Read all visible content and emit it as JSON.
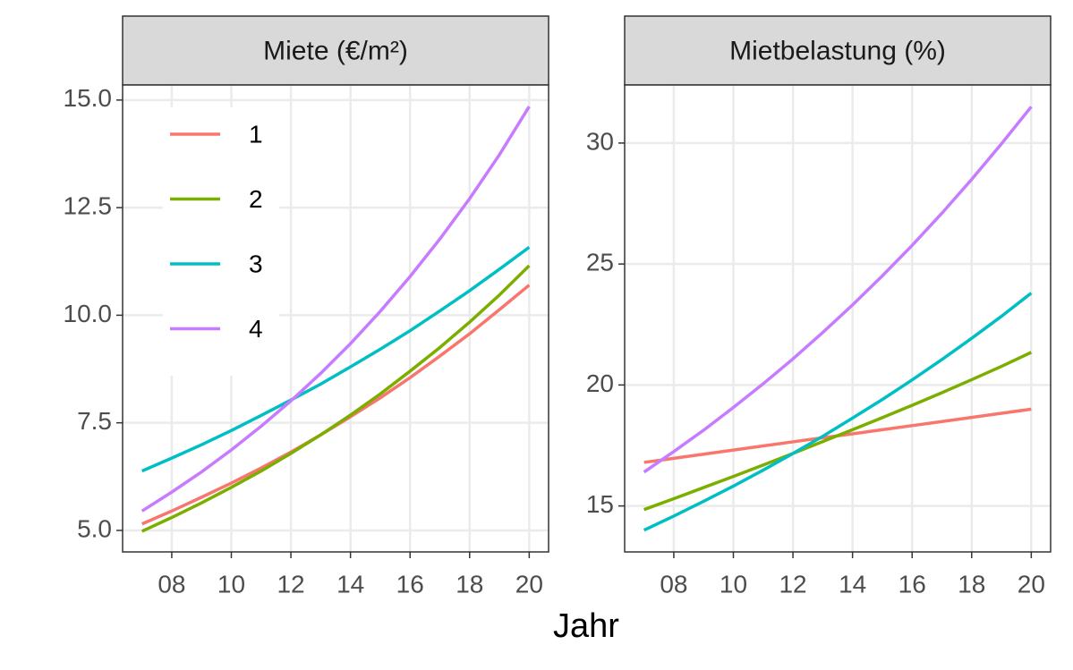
{
  "chart_data": [
    {
      "type": "line",
      "title": "Miete (€/m²)",
      "x": [
        7,
        8,
        9,
        10,
        11,
        12,
        13,
        14,
        15,
        16,
        17,
        18,
        19,
        20
      ],
      "xlim": [
        6.35,
        20.65
      ],
      "xticks": [
        {
          "value": 8,
          "label": "08"
        },
        10,
        12,
        14,
        16,
        18,
        20
      ],
      "ylim": [
        4.5,
        15.35
      ],
      "yticks": [
        {
          "value": 5,
          "label": "5.0"
        },
        7.5,
        {
          "value": 10,
          "label": "10.0"
        },
        12.5,
        {
          "value": 15,
          "label": "15.0"
        }
      ],
      "grid": true,
      "legend": "top-left",
      "series": [
        {
          "name": "1",
          "color": "#F8766D",
          "values": [
            5.15,
            5.45,
            5.77,
            6.1,
            6.45,
            6.82,
            7.22,
            7.64,
            8.08,
            8.55,
            9.05,
            9.57,
            10.13,
            10.7
          ]
        },
        {
          "name": "2",
          "color": "#7CAE00",
          "values": [
            4.98,
            5.3,
            5.64,
            6.0,
            6.38,
            6.79,
            7.22,
            7.68,
            8.17,
            8.7,
            9.25,
            9.84,
            10.47,
            11.15
          ]
        },
        {
          "name": "3",
          "color": "#00BFC4",
          "values": [
            6.38,
            6.68,
            6.99,
            7.32,
            7.67,
            8.03,
            8.4,
            8.8,
            9.21,
            9.64,
            10.1,
            10.57,
            11.07,
            11.58
          ]
        },
        {
          "name": "4",
          "color": "#C77CFF",
          "values": [
            5.45,
            5.89,
            6.36,
            6.87,
            7.42,
            8.01,
            8.65,
            9.34,
            10.09,
            10.9,
            11.77,
            12.71,
            13.73,
            14.85
          ]
        }
      ]
    },
    {
      "type": "line",
      "title": "Mietbelastung (%)",
      "x": [
        7,
        8,
        9,
        10,
        11,
        12,
        13,
        14,
        15,
        16,
        17,
        18,
        19,
        20
      ],
      "xlim": [
        6.35,
        20.65
      ],
      "xticks": [
        {
          "value": 8,
          "label": "08"
        },
        10,
        12,
        14,
        16,
        18,
        20
      ],
      "ylim": [
        13.1,
        32.4
      ],
      "yticks": [
        15,
        20,
        25,
        30
      ],
      "grid": true,
      "series": [
        {
          "name": "1",
          "color": "#F8766D",
          "values": [
            16.8,
            16.97,
            17.14,
            17.31,
            17.48,
            17.65,
            17.82,
            17.98,
            18.15,
            18.32,
            18.49,
            18.66,
            18.83,
            19.0
          ]
        },
        {
          "name": "2",
          "color": "#7CAE00",
          "values": [
            14.85,
            15.3,
            15.76,
            16.22,
            16.69,
            17.17,
            17.66,
            18.15,
            18.65,
            19.16,
            19.68,
            20.22,
            20.77,
            21.35
          ]
        },
        {
          "name": "3",
          "color": "#00BFC4",
          "values": [
            14.0,
            14.58,
            15.19,
            15.82,
            16.48,
            17.17,
            17.88,
            18.63,
            19.4,
            20.21,
            21.05,
            21.93,
            22.84,
            23.8
          ]
        },
        {
          "name": "4",
          "color": "#C77CFF",
          "values": [
            16.4,
            17.25,
            18.13,
            19.07,
            20.05,
            21.08,
            22.17,
            23.31,
            24.51,
            25.77,
            27.1,
            28.5,
            29.97,
            31.5
          ]
        }
      ]
    }
  ],
  "xlabel": "Jahr"
}
